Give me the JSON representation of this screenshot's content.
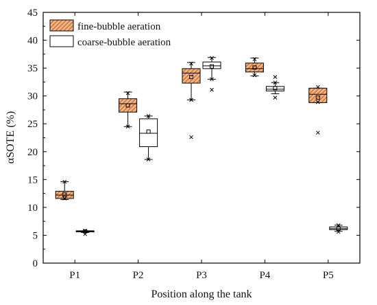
{
  "chart_data": {
    "type": "box",
    "title": "",
    "xlabel": "Position along the tank",
    "ylabel": "αSOTE (%)",
    "ylim": [
      0,
      45
    ],
    "yticks": [
      0,
      5,
      10,
      15,
      20,
      25,
      30,
      35,
      40,
      45
    ],
    "categories": [
      "P1",
      "P2",
      "P3",
      "P4",
      "P5"
    ],
    "legend_position": "top-left",
    "grid": false,
    "series": [
      {
        "name": "fine-bubble aeration",
        "fill": "#f4b183",
        "hatch": true,
        "boxes": [
          {
            "q1": 11.6,
            "median": 12.2,
            "q3": 12.9,
            "mean": 12.3,
            "whisker_low": 11.4,
            "whisker_high": 14.6,
            "min": 11.6,
            "max": 14.6,
            "outliers": []
          },
          {
            "q1": 27.1,
            "median": 28.6,
            "q3": 29.5,
            "mean": 28.3,
            "whisker_low": 24.5,
            "whisker_high": 30.7,
            "min": 24.5,
            "max": 30.5,
            "outliers": []
          },
          {
            "q1": 32.3,
            "median": 34.1,
            "q3": 34.9,
            "mean": 33.4,
            "whisker_low": 29.3,
            "whisker_high": 36.0,
            "min": 29.3,
            "max": 35.8,
            "outliers": [
              22.6
            ]
          },
          {
            "q1": 34.3,
            "median": 34.9,
            "q3": 35.9,
            "mean": 35.1,
            "whisker_low": 33.6,
            "whisker_high": 36.8,
            "min": 33.7,
            "max": 36.6,
            "outliers": []
          },
          {
            "q1": 28.8,
            "median": 30.3,
            "q3": 31.4,
            "mean": 29.7,
            "whisker_low": 28.8,
            "whisker_high": 31.4,
            "min": 28.9,
            "max": 31.6,
            "outliers": [
              23.4
            ]
          }
        ]
      },
      {
        "name": "coarse-bubble aeration",
        "fill": "#ffffff",
        "hatch": false,
        "boxes": [
          {
            "q1": 5.6,
            "median": 5.7,
            "q3": 5.8,
            "mean": 5.7,
            "whisker_low": 5.5,
            "whisker_high": 5.8,
            "min": 5.2,
            "max": 5.8,
            "outliers": []
          },
          {
            "q1": 20.9,
            "median": 23.3,
            "q3": 25.9,
            "mean": 23.6,
            "whisker_low": 18.6,
            "whisker_high": 26.4,
            "min": 18.6,
            "max": 26.4,
            "outliers": []
          },
          {
            "q1": 34.9,
            "median": 35.4,
            "q3": 36.1,
            "mean": 35.3,
            "whisker_low": 33.0,
            "whisker_high": 36.9,
            "min": 33.0,
            "max": 36.8,
            "outliers": [
              31.1
            ]
          },
          {
            "q1": 30.9,
            "median": 31.2,
            "q3": 31.7,
            "mean": 31.4,
            "whisker_low": 30.4,
            "whisker_high": 32.4,
            "min": 29.7,
            "max": 32.4,
            "outliers": [
              33.4
            ]
          },
          {
            "q1": 6.0,
            "median": 6.2,
            "q3": 6.5,
            "mean": 6.2,
            "whisker_low": 5.7,
            "whisker_high": 6.8,
            "min": 5.6,
            "max": 6.8,
            "outliers": []
          }
        ]
      }
    ]
  }
}
